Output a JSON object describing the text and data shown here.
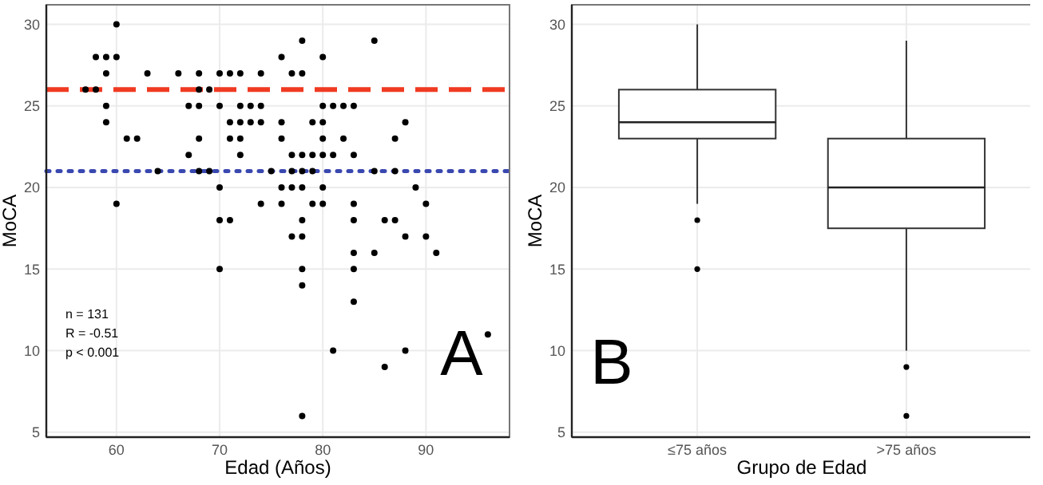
{
  "chart_data": [
    {
      "type": "scatter",
      "title": "A",
      "xlabel": "Edad (Años)",
      "ylabel": "MoCA",
      "xlim": [
        53.2,
        98.1
      ],
      "xticks": [
        60,
        70,
        80,
        90
      ],
      "ylim": [
        4.7,
        31.2
      ],
      "yticks": [
        5,
        10,
        15,
        20,
        25,
        30
      ],
      "grid": true,
      "marker": "circle",
      "annotations": [
        "n = 131",
        "R = -0.51",
        "p < 0.001"
      ],
      "ref_lines": [
        {
          "axis": "y",
          "value": 26,
          "color": "#f03a22",
          "line_style": "dashed"
        },
        {
          "axis": "y",
          "value": 21,
          "color": "#3a48b0",
          "line_style": "dotted"
        }
      ],
      "series": [
        {
          "color": "#000000",
          "x": [
            60,
            58,
            59,
            60,
            59,
            63,
            66,
            68,
            70,
            71,
            72,
            74,
            76,
            77,
            78,
            78,
            80,
            85,
            57,
            58,
            68,
            69,
            59,
            67,
            68,
            70,
            72,
            73,
            74,
            80,
            81,
            82,
            83,
            59,
            71,
            72,
            73,
            74,
            76,
            79,
            80,
            88,
            61,
            62,
            68,
            71,
            72,
            76,
            80,
            82,
            87,
            67,
            72,
            77,
            78,
            79,
            80,
            81,
            83,
            64,
            68,
            69,
            75,
            77,
            78,
            79,
            85,
            87,
            70,
            76,
            77,
            78,
            80,
            89,
            60,
            74,
            76,
            79,
            80,
            83,
            90,
            70,
            71,
            78,
            83,
            86,
            87,
            77,
            78,
            88,
            90,
            83,
            85,
            91,
            70,
            78,
            83,
            78,
            83,
            96,
            81,
            88,
            86,
            78
          ],
          "values": [
            30,
            28,
            28,
            28,
            27,
            27,
            27,
            27,
            27,
            27,
            27,
            27,
            28,
            27,
            27,
            29,
            28,
            29,
            26,
            26,
            26,
            26,
            25,
            25,
            25,
            25,
            25,
            25,
            25,
            25,
            25,
            25,
            25,
            24,
            24,
            24,
            24,
            24,
            24,
            24,
            24,
            24,
            23,
            23,
            23,
            23,
            23,
            23,
            23,
            23,
            23,
            22,
            22,
            22,
            22,
            22,
            22,
            22,
            22,
            21,
            21,
            21,
            21,
            21,
            21,
            21,
            21,
            21,
            20,
            20,
            20,
            20,
            20,
            20,
            19,
            19,
            19,
            19,
            19,
            19,
            19,
            18,
            18,
            18,
            18,
            18,
            18,
            17,
            17,
            17,
            17,
            16,
            16,
            16,
            15,
            15,
            15,
            14,
            13,
            11,
            10,
            10,
            9,
            6
          ]
        }
      ]
    },
    {
      "type": "box",
      "title": "B",
      "xlabel": "Grupo de Edad",
      "ylabel": "MoCA",
      "categories": [
        "≤75 años",
        ">75 años"
      ],
      "ylim": [
        4.7,
        31.2
      ],
      "yticks": [
        5,
        10,
        15,
        20,
        25,
        30
      ],
      "grid": true,
      "boxes": [
        {
          "low": 19,
          "q1": 23,
          "median": 24,
          "q3": 26,
          "high": 30,
          "outliers": [
            18,
            15
          ]
        },
        {
          "low": 10,
          "q1": 17.5,
          "median": 20,
          "q3": 23,
          "high": 29,
          "outliers": [
            9,
            6
          ]
        }
      ]
    }
  ]
}
